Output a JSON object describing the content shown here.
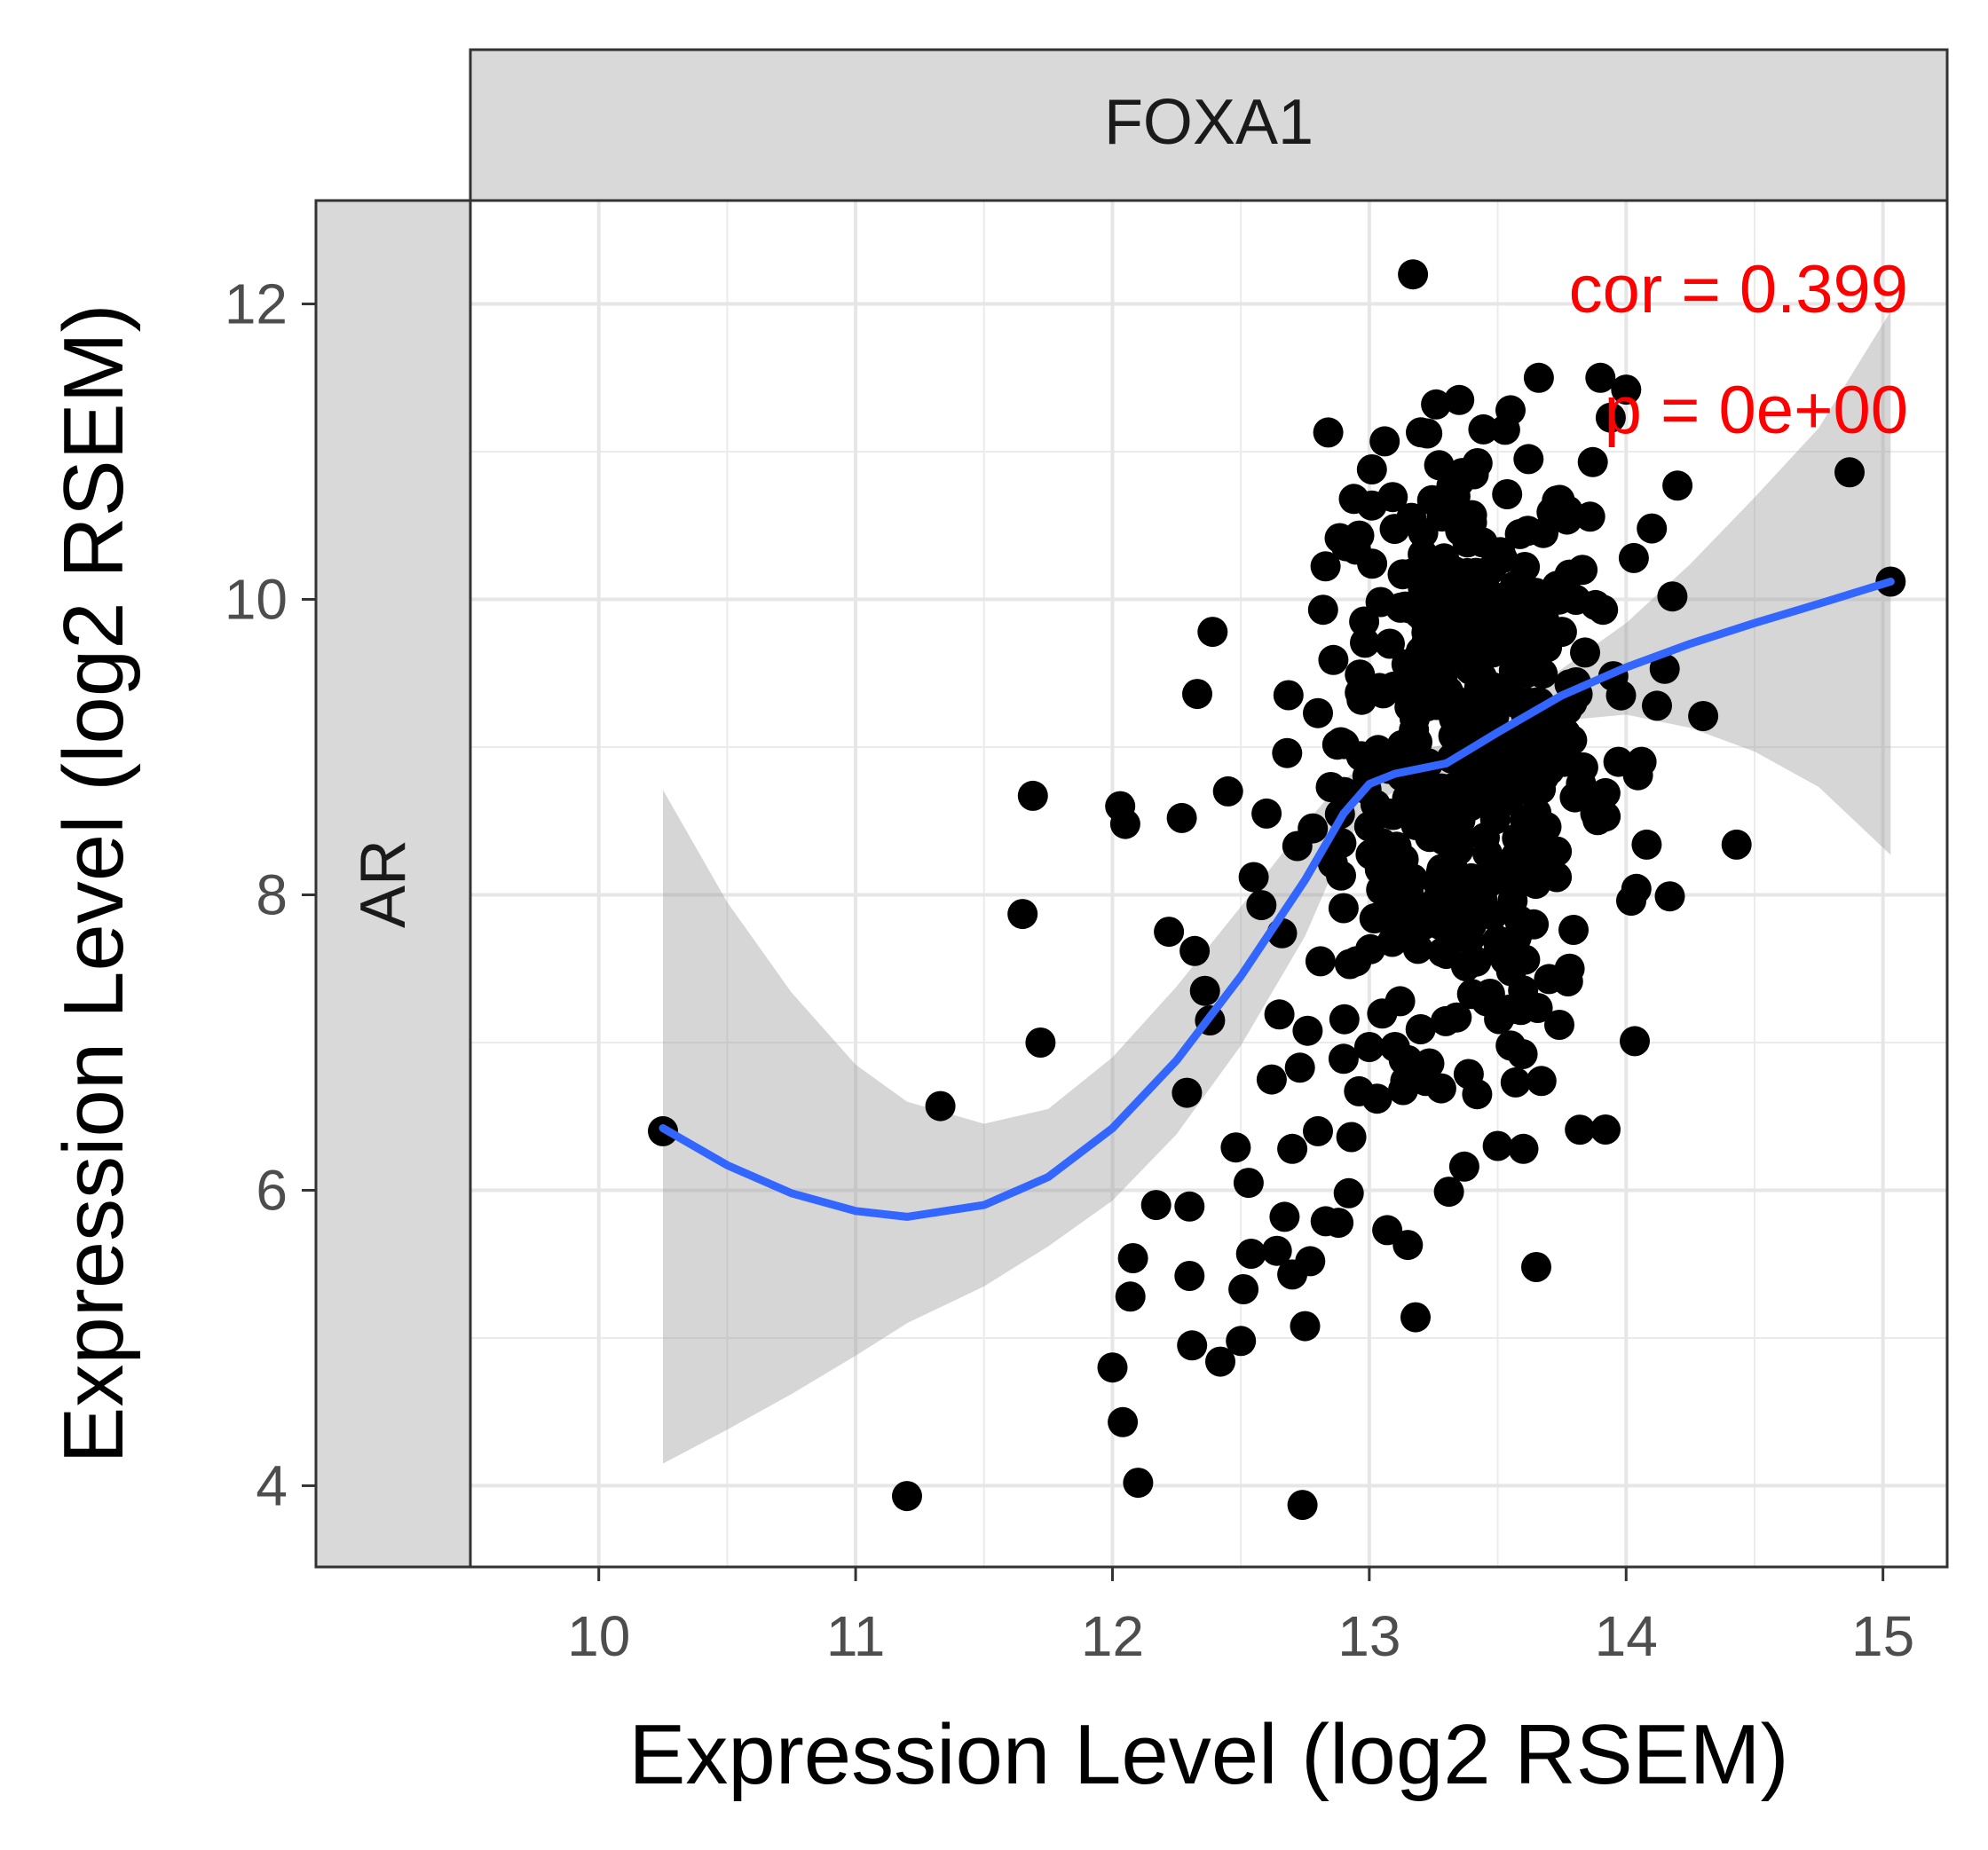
{
  "chart_data": {
    "type": "scatter",
    "facet_column": "FOXA1",
    "facet_row": "AR",
    "xlabel": "Expression Level (log2 RSEM)",
    "ylabel": "Expression Level (log2 RSEM)",
    "xlim": [
      9.5,
      15.25
    ],
    "ylim": [
      3.45,
      12.7
    ],
    "xticks": [
      "10",
      "11",
      "12",
      "13",
      "14",
      "15"
    ],
    "yticks": [
      "4",
      "6",
      "8",
      "10",
      "12"
    ],
    "grid": true,
    "annotations": {
      "cor": "cor = 0.399",
      "p": "p = 0e+00"
    },
    "annotation_color": "#ff0000",
    "point_color": "#000000",
    "fit_color": "#3366ff",
    "band_color": "#999999",
    "points": [
      [
        10.25,
        6.4
      ],
      [
        11.2,
        3.93
      ],
      [
        11.33,
        6.57
      ],
      [
        11.65,
        7.87
      ],
      [
        11.69,
        8.67
      ],
      [
        11.72,
        7.0
      ],
      [
        12.0,
        4.8
      ],
      [
        12.03,
        8.6
      ],
      [
        12.04,
        4.43
      ],
      [
        12.05,
        8.48
      ],
      [
        12.07,
        5.28
      ],
      [
        12.08,
        5.54
      ],
      [
        12.1,
        4.02
      ],
      [
        12.17,
        5.9
      ],
      [
        12.22,
        7.75
      ],
      [
        12.27,
        8.52
      ],
      [
        12.29,
        6.66
      ],
      [
        12.3,
        5.89
      ],
      [
        12.3,
        5.42
      ],
      [
        12.31,
        4.95
      ],
      [
        12.32,
        7.62
      ],
      [
        12.33,
        9.36
      ],
      [
        12.36,
        7.35
      ],
      [
        12.38,
        7.15
      ],
      [
        12.39,
        9.78
      ],
      [
        12.42,
        4.84
      ],
      [
        12.45,
        8.7
      ],
      [
        12.48,
        6.29
      ],
      [
        12.5,
        4.98
      ],
      [
        12.51,
        5.33
      ],
      [
        12.53,
        6.05
      ],
      [
        12.54,
        5.57
      ],
      [
        12.55,
        8.12
      ],
      [
        12.58,
        7.93
      ],
      [
        12.6,
        8.55
      ],
      [
        12.62,
        6.75
      ],
      [
        12.64,
        5.59
      ],
      [
        12.65,
        7.19
      ],
      [
        12.66,
        7.74
      ],
      [
        12.67,
        5.82
      ],
      [
        12.68,
        8.96
      ],
      [
        12.7,
        6.28
      ],
      [
        12.7,
        5.43
      ],
      [
        12.72,
        8.33
      ],
      [
        12.73,
        6.83
      ],
      [
        12.74,
        3.87
      ],
      [
        12.75,
        5.08
      ],
      [
        12.76,
        7.08
      ],
      [
        12.77,
        5.52
      ],
      [
        12.78,
        8.45
      ],
      [
        12.8,
        6.4
      ],
      [
        12.8,
        9.23
      ],
      [
        12.81,
        7.55
      ],
      [
        12.82,
        9.93
      ],
      [
        12.83,
        5.79
      ],
      [
        12.84,
        11.13
      ],
      [
        12.85,
        8.73
      ],
      [
        12.86,
        9.59
      ],
      [
        12.88,
        5.78
      ],
      [
        12.89,
        8.13
      ],
      [
        12.9,
        7.91
      ],
      [
        12.9,
        6.89
      ],
      [
        12.91,
        10.36
      ],
      [
        12.92,
        5.98
      ],
      [
        12.93,
        6.36
      ],
      [
        12.94,
        10.68
      ],
      [
        12.95,
        7.55
      ],
      [
        12.96,
        6.67
      ],
      [
        12.97,
        9.32
      ],
      [
        12.98,
        9.85
      ],
      [
        12.99,
        8.91
      ],
      [
        13.0,
        6.97
      ],
      [
        13.01,
        10.88
      ],
      [
        13.02,
        7.84
      ],
      [
        13.03,
        6.62
      ],
      [
        13.04,
        9.4
      ],
      [
        13.05,
        8.35
      ],
      [
        13.06,
        11.07
      ],
      [
        13.07,
        5.73
      ],
      [
        13.08,
        9.7
      ],
      [
        13.09,
        7.91
      ],
      [
        13.1,
        6.97
      ],
      [
        13.11,
        8.07
      ],
      [
        13.12,
        7.28
      ],
      [
        13.13,
        10.17
      ],
      [
        13.14,
        6.74
      ],
      [
        13.15,
        5.63
      ],
      [
        13.16,
        9.05
      ],
      [
        13.17,
        12.2
      ],
      [
        13.18,
        5.14
      ],
      [
        13.19,
        8.53
      ],
      [
        13.2,
        7.09
      ],
      [
        13.21,
        10.45
      ],
      [
        13.22,
        6.74
      ],
      [
        13.23,
        8.89
      ],
      [
        13.24,
        9.58
      ],
      [
        13.25,
        7.91
      ],
      [
        13.26,
        11.32
      ],
      [
        13.27,
        9.82
      ],
      [
        13.28,
        6.69
      ],
      [
        13.29,
        8.37
      ],
      [
        13.3,
        7.6
      ],
      [
        13.31,
        5.99
      ],
      [
        13.32,
        10.77
      ],
      [
        13.33,
        9.19
      ],
      [
        13.34,
        7.17
      ],
      [
        13.35,
        11.35
      ],
      [
        13.36,
        8.61
      ],
      [
        13.37,
        6.16
      ],
      [
        13.38,
        9.86
      ],
      [
        13.39,
        7.7
      ],
      [
        13.4,
        10.52
      ],
      [
        13.41,
        8.85
      ],
      [
        13.42,
        6.65
      ],
      [
        13.43,
        9.42
      ],
      [
        13.44,
        7.97
      ],
      [
        13.45,
        10.08
      ],
      [
        13.46,
        8.28
      ],
      [
        13.47,
        7.33
      ],
      [
        13.48,
        9.64
      ],
      [
        13.49,
        8.51
      ],
      [
        13.5,
        6.3
      ],
      [
        13.51,
        10.32
      ],
      [
        13.52,
        8.97
      ],
      [
        13.53,
        7.56
      ],
      [
        13.54,
        9.33
      ],
      [
        13.55,
        11.28
      ],
      [
        13.56,
        8.11
      ],
      [
        13.57,
        6.73
      ],
      [
        13.58,
        10.02
      ],
      [
        13.59,
        7.22
      ],
      [
        13.6,
        6.28
      ],
      [
        13.61,
        9.5
      ],
      [
        13.62,
        10.95
      ],
      [
        13.63,
        8.7
      ],
      [
        13.64,
        7.8
      ],
      [
        13.65,
        5.48
      ],
      [
        13.66,
        11.5
      ],
      [
        13.67,
        6.74
      ],
      [
        13.68,
        9.87
      ],
      [
        13.69,
        8.46
      ],
      [
        13.7,
        7.43
      ],
      [
        13.71,
        10.59
      ],
      [
        13.72,
        9.16
      ],
      [
        13.73,
        8.12
      ],
      [
        13.74,
        7.12
      ],
      [
        13.75,
        9.78
      ],
      [
        13.76,
        8.9
      ],
      [
        13.77,
        10.54
      ],
      [
        13.78,
        7.5
      ],
      [
        13.79,
        9.3
      ],
      [
        13.8,
        8.66
      ],
      [
        13.82,
        6.41
      ],
      [
        13.83,
        10.2
      ],
      [
        13.84,
        9.64
      ],
      [
        13.86,
        10.56
      ],
      [
        13.88,
        8.55
      ],
      [
        13.9,
        11.5
      ],
      [
        13.91,
        9.93
      ],
      [
        13.92,
        8.53
      ],
      [
        13.94,
        11.23
      ],
      [
        13.95,
        9.48
      ],
      [
        13.97,
        8.9
      ],
      [
        13.98,
        9.35
      ],
      [
        14.0,
        11.42
      ],
      [
        14.02,
        7.96
      ],
      [
        14.03,
        10.28
      ],
      [
        14.04,
        8.04
      ],
      [
        14.06,
        8.9
      ],
      [
        14.08,
        8.34
      ],
      [
        14.1,
        10.48
      ],
      [
        14.12,
        9.28
      ],
      [
        14.15,
        9.53
      ],
      [
        14.17,
        7.99
      ],
      [
        14.18,
        10.02
      ],
      [
        14.2,
        10.77
      ],
      [
        14.3,
        9.21
      ],
      [
        14.43,
        8.34
      ],
      [
        14.87,
        10.86
      ],
      [
        15.03,
        10.12
      ]
    ],
    "dense_region": {
      "x_center": 13.38,
      "x_sd": 0.24,
      "y_center": 9.1,
      "y_sd": 1.05,
      "count": 380
    },
    "loess_fit": {
      "x": [
        10.25,
        10.5,
        10.75,
        11.0,
        11.2,
        11.5,
        11.75,
        12.0,
        12.25,
        12.5,
        12.75,
        12.9,
        13.0,
        13.1,
        13.3,
        13.5,
        13.75,
        14.0,
        14.25,
        14.5,
        14.75,
        15.03
      ],
      "y": [
        6.42,
        6.17,
        5.98,
        5.86,
        5.82,
        5.9,
        6.09,
        6.42,
        6.88,
        7.45,
        8.1,
        8.55,
        8.75,
        8.82,
        8.89,
        9.1,
        9.35,
        9.54,
        9.7,
        9.84,
        9.97,
        10.12
      ],
      "lower": [
        4.15,
        4.38,
        4.62,
        4.88,
        5.1,
        5.35,
        5.62,
        5.93,
        6.38,
        6.98,
        7.72,
        8.32,
        8.6,
        8.7,
        8.79,
        8.96,
        9.18,
        9.22,
        9.13,
        8.97,
        8.73,
        8.27
      ],
      "upper": [
        8.71,
        7.95,
        7.34,
        6.85,
        6.6,
        6.45,
        6.55,
        6.9,
        7.38,
        7.92,
        8.48,
        8.78,
        8.9,
        8.95,
        9.02,
        9.25,
        9.53,
        9.84,
        10.24,
        10.69,
        11.16,
        11.95
      ]
    }
  }
}
